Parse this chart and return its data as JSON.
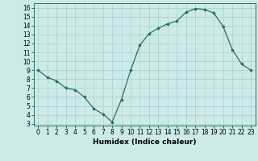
{
  "x": [
    0,
    1,
    2,
    3,
    4,
    5,
    6,
    7,
    8,
    9,
    10,
    11,
    12,
    13,
    14,
    15,
    16,
    17,
    18,
    19,
    20,
    21,
    22,
    23
  ],
  "y": [
    9.0,
    8.2,
    7.8,
    7.0,
    6.8,
    6.0,
    4.7,
    4.1,
    3.2,
    5.7,
    9.0,
    11.8,
    13.1,
    13.7,
    14.2,
    14.5,
    15.5,
    15.9,
    15.8,
    15.4,
    13.9,
    11.3,
    9.7,
    9.0
  ],
  "xlabel": "Humidex (Indice chaleur)",
  "xlim": [
    -0.5,
    23.5
  ],
  "ylim": [
    2.8,
    16.5
  ],
  "yticks": [
    3,
    4,
    5,
    6,
    7,
    8,
    9,
    10,
    11,
    12,
    13,
    14,
    15,
    16
  ],
  "xticks": [
    0,
    1,
    2,
    3,
    4,
    5,
    6,
    7,
    8,
    9,
    10,
    11,
    12,
    13,
    14,
    15,
    16,
    17,
    18,
    19,
    20,
    21,
    22,
    23
  ],
  "line_color": "#2a6e5e",
  "marker": "D",
  "marker_size": 1.8,
  "bg_color": "#cdeaea",
  "grid_color": "#add4d4",
  "label_fontsize": 6.5,
  "tick_fontsize": 5.5
}
